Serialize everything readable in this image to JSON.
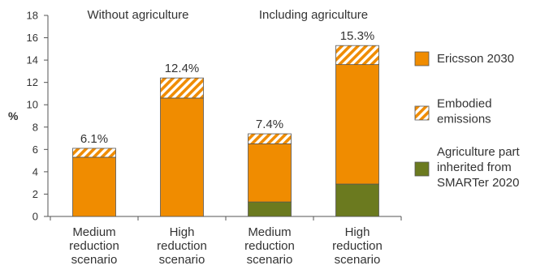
{
  "chart_data": {
    "type": "bar",
    "stacked": true,
    "ylabel": "%",
    "ylim": [
      0,
      18
    ],
    "yticks": [
      0,
      2,
      4,
      6,
      8,
      10,
      12,
      14,
      16,
      18
    ],
    "grid": false,
    "legend_position": "right",
    "categories": [
      [
        "Medium",
        "reduction",
        "scenario"
      ],
      [
        "High",
        "reduction",
        "scenario"
      ],
      [
        "Medium",
        "reduction",
        "scenario"
      ],
      [
        "High",
        "reduction",
        "scenario"
      ]
    ],
    "group_labels": [
      {
        "text": "Without agriculture",
        "categories": [
          0,
          1
        ]
      },
      {
        "text": "Including agriculture",
        "categories": [
          2,
          3
        ]
      }
    ],
    "series": [
      {
        "name": "Agriculture part inherited from SMARTer 2020",
        "legend_lines": [
          "Agriculture part",
          "inherited from",
          "SMARTer 2020"
        ],
        "color": "#6b7a1f",
        "pattern": "solid",
        "values": [
          0,
          0,
          1.3,
          2.9
        ]
      },
      {
        "name": "Ericsson 2030",
        "legend_lines": [
          "Ericsson 2030"
        ],
        "color": "#f08c00",
        "pattern": "solid",
        "values": [
          5.3,
          10.6,
          5.2,
          10.7
        ]
      },
      {
        "name": "Embodied emissions",
        "legend_lines": [
          "Embodied",
          "emissions"
        ],
        "color": "#f08c00",
        "pattern": "hatch",
        "values": [
          0.8,
          1.8,
          0.9,
          1.7
        ]
      }
    ],
    "legend_order": [
      1,
      2,
      0
    ],
    "totals": [
      "6.1%",
      "12.4%",
      "7.4%",
      "15.3%"
    ]
  }
}
